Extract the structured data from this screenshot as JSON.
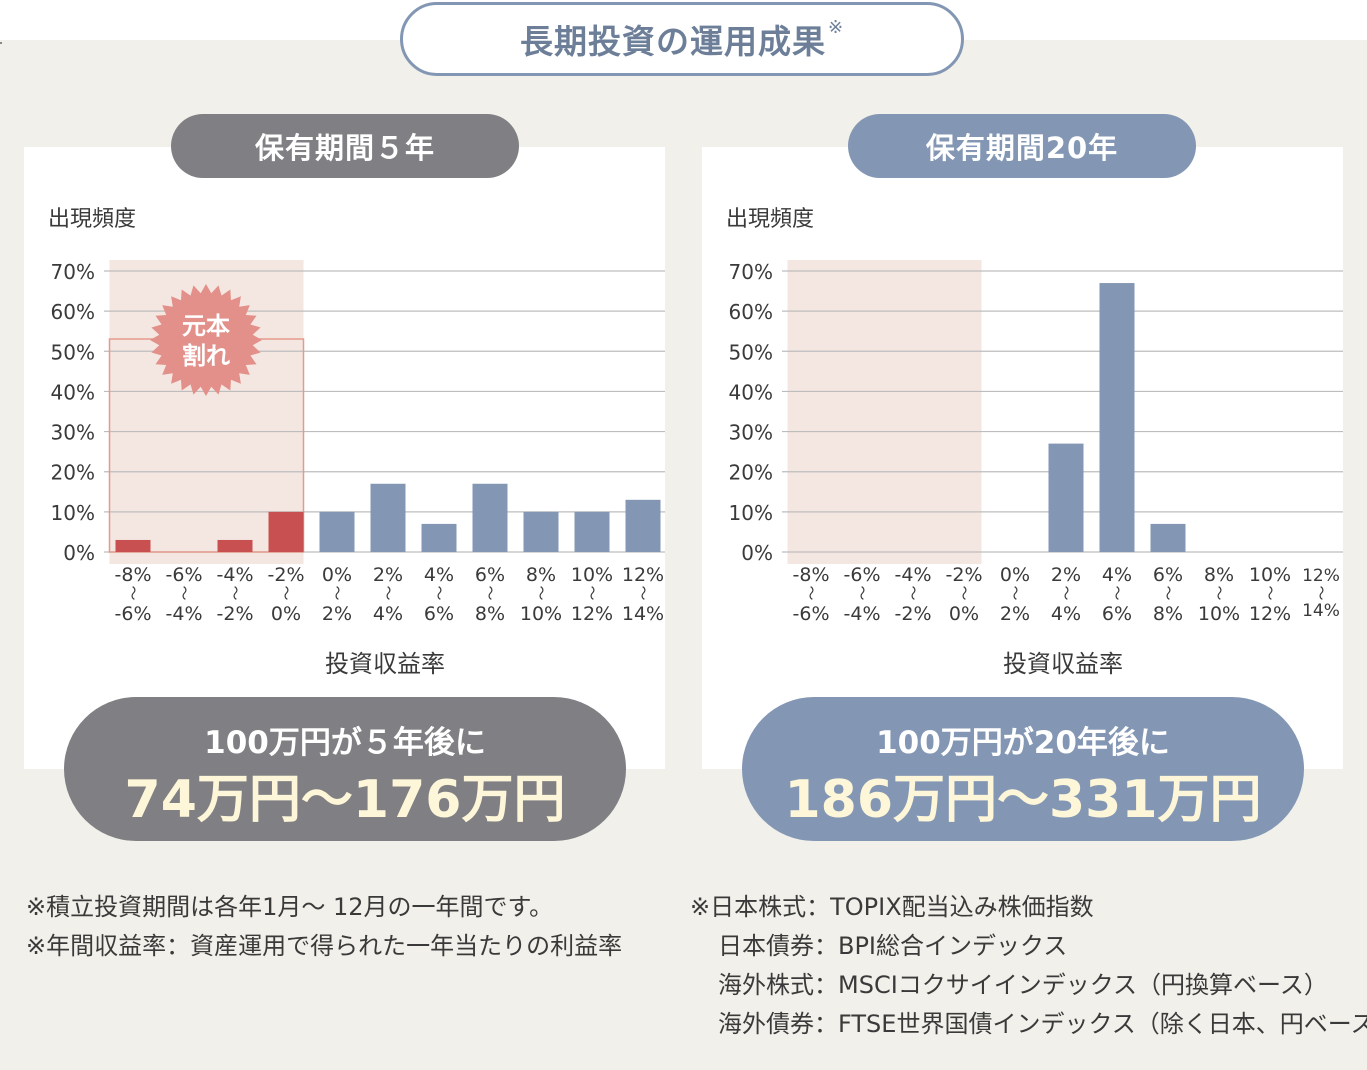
{
  "title": "長期投資の運用成果",
  "title_mark": "※",
  "colors": {
    "gray": "#808084",
    "blue": "#8397b4",
    "loss_red": "#c85050",
    "loss_zone": "#f4e6e1",
    "burst": "#e3908a",
    "highlight_text": "#fdf6d8"
  },
  "chart_data": [
    {
      "type": "bar",
      "title": "保有期間５年",
      "ylabel": "出現頻度",
      "xlabel": "投資収益率",
      "ylim": [
        0,
        70
      ],
      "yticks": [
        "70%",
        "60%",
        "50%",
        "40%",
        "30%",
        "20%",
        "10%",
        "0%"
      ],
      "categories": [
        [
          "-8%",
          "〜",
          "-6%"
        ],
        [
          "-6%",
          "〜",
          "-4%"
        ],
        [
          "-4%",
          "〜",
          "-2%"
        ],
        [
          "-2%",
          "〜",
          "0%"
        ],
        [
          "0%",
          "〜",
          "2%"
        ],
        [
          "2%",
          "〜",
          "4%"
        ],
        [
          "4%",
          "〜",
          "6%"
        ],
        [
          "6%",
          "〜",
          "8%"
        ],
        [
          "8%",
          "〜",
          "10%"
        ],
        [
          "10%",
          "〜",
          "12%"
        ],
        [
          "12%",
          "〜",
          "14%"
        ]
      ],
      "values": [
        3,
        0,
        3,
        10,
        10,
        17,
        7,
        17,
        10,
        10,
        13
      ],
      "loss_categories": 4,
      "loss_label": [
        "元本",
        "割れ"
      ],
      "grid": true
    },
    {
      "type": "bar",
      "title": "保有期間20年",
      "ylabel": "出現頻度",
      "xlabel": "投資収益率",
      "ylim": [
        0,
        70
      ],
      "yticks": [
        "70%",
        "60%",
        "50%",
        "40%",
        "30%",
        "20%",
        "10%",
        "0%"
      ],
      "categories": [
        [
          "-8%",
          "〜",
          "-6%"
        ],
        [
          "-6%",
          "〜",
          "-4%"
        ],
        [
          "-4%",
          "〜",
          "-2%"
        ],
        [
          "-2%",
          "〜",
          "0%"
        ],
        [
          "0%",
          "〜",
          "2%"
        ],
        [
          "2%",
          "〜",
          "4%"
        ],
        [
          "4%",
          "〜",
          "6%"
        ],
        [
          "6%",
          "〜",
          "8%"
        ],
        [
          "8%",
          "〜",
          "10%"
        ],
        [
          "10%",
          "〜",
          "12%"
        ],
        [
          "12%",
          "〜",
          "14%"
        ]
      ],
      "values": [
        0,
        0,
        0,
        0,
        0,
        27,
        67,
        7,
        0,
        0,
        0
      ],
      "loss_categories": 4,
      "grid": true
    }
  ],
  "left": {
    "pill": "保有期間５年",
    "result_line1": "100万円が５年後に",
    "result_line2": "74万円〜176万円"
  },
  "right": {
    "pill": "保有期間20年",
    "result_line1": "100万円が20年後に",
    "result_line2": "186万円〜331万円"
  },
  "notes_left": [
    "※積立投資期間は各年1月〜 12月の一年間です。",
    "※年間収益率：資産運用で得られた一年当たりの利益率"
  ],
  "notes_right": [
    "※日本株式：TOPIX配当込み株価指数",
    "日本債券：BPI総合インデックス",
    "海外株式：MSCIコクサイインデックス（円換算ベース）",
    "海外債券：FTSE世界国債インデックス（除く日本、円ベース）"
  ]
}
